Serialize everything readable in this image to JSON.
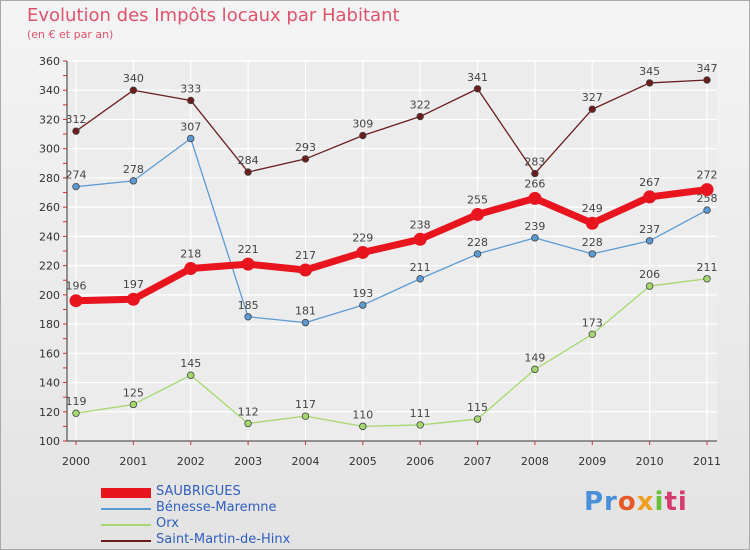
{
  "chart_data": {
    "type": "line",
    "title": "Evolution des Impôts locaux par Habitant",
    "subtitle": "(en € et par an)",
    "xlabel": "",
    "ylabel": "",
    "x": [
      "2000",
      "2001",
      "2002",
      "2003",
      "2004",
      "2005",
      "2006",
      "2007",
      "2008",
      "2009",
      "2010",
      "2011"
    ],
    "ylim": [
      100,
      360
    ],
    "yticks": [
      100,
      120,
      140,
      160,
      180,
      200,
      220,
      240,
      260,
      280,
      300,
      320,
      340,
      360
    ],
    "grid": true,
    "series": [
      {
        "name": "SAUBRIGUES",
        "color": "#e8141e",
        "values": [
          196,
          197,
          218,
          221,
          217,
          229,
          238,
          255,
          266,
          249,
          267,
          272
        ]
      },
      {
        "name": "Bénesse-Maremne",
        "color": "#5b9bd5",
        "values": [
          274,
          278,
          307,
          185,
          181,
          193,
          211,
          228,
          239,
          228,
          237,
          258
        ]
      },
      {
        "name": "Orx",
        "color": "#a6d86e",
        "values": [
          119,
          125,
          145,
          112,
          117,
          110,
          111,
          115,
          149,
          173,
          206,
          211
        ]
      },
      {
        "name": "Saint-Martin-de-Hinx",
        "color": "#6b1d1d",
        "values": [
          312,
          340,
          333,
          284,
          293,
          309,
          322,
          341,
          283,
          327,
          345,
          347
        ]
      }
    ]
  },
  "logo": {
    "p1": "Pr",
    "p2": "o",
    "p3": "x",
    "p4": "i",
    "p5": "ti"
  }
}
